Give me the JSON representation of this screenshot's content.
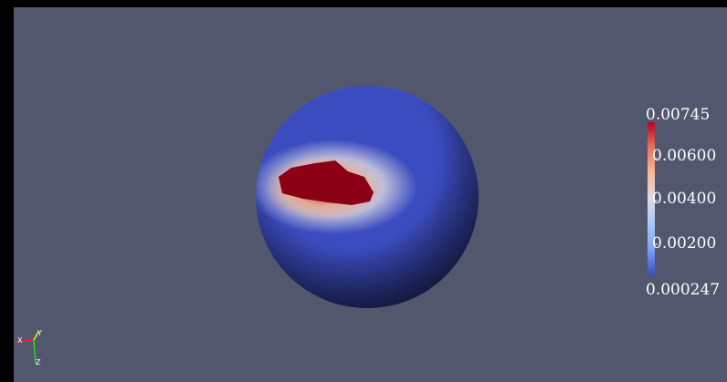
{
  "viewport": {
    "background_color": "#52576e"
  },
  "sphere": {
    "colors": {
      "low": "#3b4cc0",
      "dark_shade": "#1a2152",
      "mid": "#e8e4e6",
      "warm": "#e9a585",
      "high": "#a80a1f",
      "peak": "#8c0016"
    }
  },
  "scalar_bar": {
    "max_label": "0.00745",
    "min_label": "0.000247",
    "tick_labels": [
      "0.00600",
      "0.00400",
      "0.00200"
    ],
    "gradient": [
      "#b40426",
      "#e7745b",
      "#f7b89c",
      "#dddcdc",
      "#aac7fd",
      "#7b9ff9",
      "#3b4cc0"
    ]
  },
  "axes": {
    "x_label": "X",
    "y_label": "Y",
    "z_label": "Z",
    "x_color": "#ff2020",
    "y_color": "#f0f000",
    "z_color": "#20e020"
  }
}
